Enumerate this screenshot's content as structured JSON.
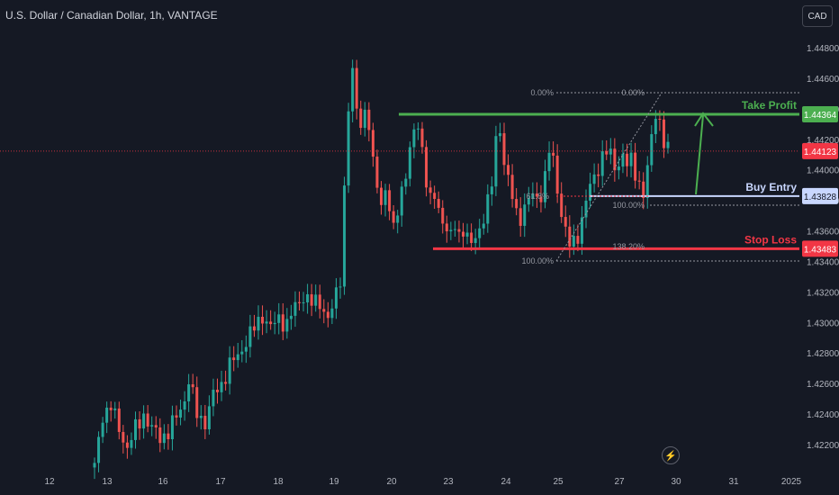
{
  "header": {
    "symbol_title": "U.S. Dollar / Canadian Dollar, 1h, VANTAGE",
    "currency": "CAD"
  },
  "colors": {
    "background": "#151924",
    "up": "#26a69a",
    "down": "#ef5350",
    "take_profit": "#4caf50",
    "stop_loss": "#f23645",
    "buy_entry": "#c9d7ff",
    "current": "#f23645",
    "fib": "#9598a1"
  },
  "chart_data": {
    "type": "candlestick",
    "ylim": [
      1.42,
      1.49
    ],
    "y_ticks": [
      "1.44800",
      "1.44600",
      "1.44400",
      "1.44200",
      "1.44000",
      "1.43800",
      "1.43600",
      "1.43400",
      "1.43200",
      "1.43000",
      "1.42800",
      "1.42600",
      "1.42400",
      "1.42200"
    ],
    "y_tick_values": [
      1.448,
      1.446,
      1.444,
      1.442,
      1.44,
      1.438,
      1.436,
      1.434,
      1.432,
      1.43,
      1.428,
      1.426,
      1.424,
      1.422
    ],
    "x_ticks": [
      "12",
      "13",
      "16",
      "17",
      "18",
      "19",
      "20",
      "23",
      "24",
      "25",
      "27",
      "30",
      "31",
      "2025"
    ],
    "price_path": [
      [
        0,
        1.4205
      ],
      [
        2,
        1.424
      ],
      [
        4,
        1.4245
      ],
      [
        6,
        1.423
      ],
      [
        8,
        1.4218
      ],
      [
        10,
        1.423
      ],
      [
        12,
        1.424
      ],
      [
        14,
        1.423
      ],
      [
        16,
        1.4225
      ],
      [
        18,
        1.4228
      ],
      [
        20,
        1.4238
      ],
      [
        22,
        1.425
      ],
      [
        23,
        1.4262
      ],
      [
        25,
        1.424
      ],
      [
        27,
        1.4235
      ],
      [
        29,
        1.4252
      ],
      [
        31,
        1.426
      ],
      [
        33,
        1.4272
      ],
      [
        35,
        1.4278
      ],
      [
        37,
        1.4288
      ],
      [
        39,
        1.4296
      ],
      [
        41,
        1.4305
      ],
      [
        43,
        1.4296
      ],
      [
        45,
        1.4303
      ],
      [
        47,
        1.4299
      ],
      [
        49,
        1.431
      ],
      [
        51,
        1.4318
      ],
      [
        53,
        1.4312
      ],
      [
        55,
        1.4314
      ],
      [
        57,
        1.4302
      ],
      [
        58,
        1.4308
      ],
      [
        60,
        1.433
      ],
      [
        61,
        1.4388
      ],
      [
        62,
        1.444
      ],
      [
        63,
        1.4462
      ],
      [
        64,
        1.444
      ],
      [
        65,
        1.4432
      ],
      [
        66,
        1.4438
      ],
      [
        67,
        1.4428
      ],
      [
        68,
        1.4402
      ],
      [
        69,
        1.4392
      ],
      [
        70,
        1.4378
      ],
      [
        71,
        1.4388
      ],
      [
        72,
        1.4372
      ],
      [
        73,
        1.436
      ],
      [
        74,
        1.4375
      ],
      [
        75,
        1.4388
      ],
      [
        76,
        1.4398
      ],
      [
        77,
        1.441
      ],
      [
        78,
        1.4425
      ],
      [
        79,
        1.443
      ],
      [
        80,
        1.4415
      ],
      [
        81,
        1.4392
      ],
      [
        82,
        1.4378
      ],
      [
        83,
        1.4383
      ],
      [
        84,
        1.4375
      ],
      [
        85,
        1.4368
      ],
      [
        86,
        1.436
      ],
      [
        87,
        1.4355
      ],
      [
        88,
        1.4364
      ],
      [
        89,
        1.4358
      ],
      [
        90,
        1.4362
      ],
      [
        91,
        1.4355
      ],
      [
        92,
        1.435
      ],
      [
        94,
        1.4362
      ],
      [
        96,
        1.4378
      ],
      [
        97,
        1.439
      ],
      [
        98,
        1.442
      ],
      [
        99,
        1.4428
      ],
      [
        100,
        1.4405
      ],
      [
        101,
        1.4392
      ],
      [
        102,
        1.4382
      ],
      [
        103,
        1.4372
      ],
      [
        104,
        1.437
      ],
      [
        105,
        1.4375
      ],
      [
        106,
        1.438
      ],
      [
        107,
        1.4383
      ],
      [
        108,
        1.4382
      ],
      [
        109,
        1.4385
      ],
      [
        110,
        1.4395
      ],
      [
        111,
        1.4412
      ],
      [
        112,
        1.4405
      ],
      [
        113,
        1.4388
      ],
      [
        114,
        1.4372
      ],
      [
        115,
        1.436
      ],
      [
        116,
        1.435
      ],
      [
        117,
        1.4352
      ],
      [
        118,
        1.4358
      ],
      [
        119,
        1.4368
      ],
      [
        120,
        1.438
      ],
      [
        121,
        1.4388
      ],
      [
        122,
        1.4395
      ],
      [
        123,
        1.4402
      ],
      [
        124,
        1.441
      ],
      [
        125,
        1.4412
      ],
      [
        126,
        1.4408
      ],
      [
        127,
        1.4402
      ],
      [
        128,
        1.4405
      ],
      [
        129,
        1.441
      ],
      [
        130,
        1.4403
      ],
      [
        131,
        1.4405
      ],
      [
        132,
        1.4398
      ],
      [
        133,
        1.4392
      ],
      [
        134,
        1.4384
      ],
      [
        135,
        1.44
      ],
      [
        136,
        1.442
      ],
      [
        137,
        1.4438
      ],
      [
        138,
        1.4432
      ],
      [
        139,
        1.4418
      ],
      [
        140,
        1.4412
      ]
    ],
    "horizontal_levels": [
      {
        "label": "Take Profit",
        "value": 1.44364,
        "price_label": "1.44364",
        "color": "#4caf50"
      },
      {
        "label": "Buy Entry",
        "value": 1.43828,
        "price_label": "1.43828",
        "color": "#c9d7ff"
      },
      {
        "label": "Stop Loss",
        "value": 1.43483,
        "price_label": "1.43483",
        "color": "#f23645"
      }
    ],
    "current_price": {
      "value": 1.44123,
      "price_label": "1.44123"
    },
    "fib_labels": [
      "0.00%",
      "0.00%",
      "61.8%",
      "100.00%",
      "100.00%",
      "138.20%"
    ]
  },
  "footer": {
    "bolt_glyph": "⚡"
  }
}
